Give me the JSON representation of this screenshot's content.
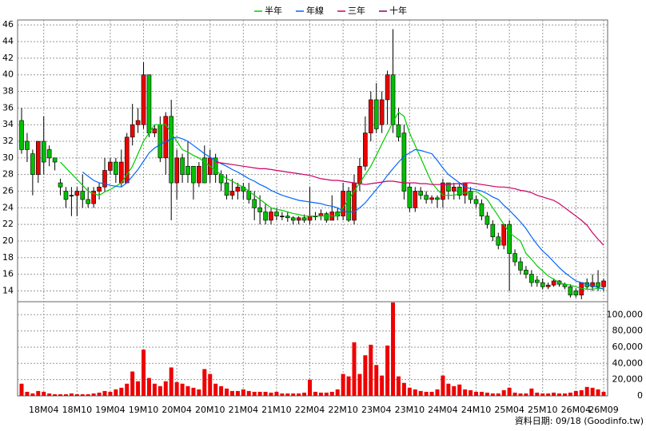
{
  "chart_data": {
    "type": "candlestick",
    "categories": [
      null,
      null,
      null,
      null,
      "18M04",
      null,
      null,
      null,
      null,
      null,
      "18M10",
      null,
      null,
      null,
      null,
      null,
      "19M04",
      null,
      null,
      null,
      null,
      null,
      "19M10",
      null,
      null,
      null,
      null,
      null,
      "20M04",
      null,
      null,
      null,
      null,
      null,
      "20M10",
      null,
      null,
      null,
      null,
      null,
      "21M04",
      null,
      null,
      null,
      null,
      null,
      "21M10",
      null,
      null,
      null,
      null,
      null,
      "22M04",
      null,
      null,
      null,
      null,
      null,
      "22M10",
      null,
      null,
      null,
      null,
      null,
      "23M04",
      null,
      null,
      null,
      null,
      null,
      "23M10",
      null,
      null,
      null,
      null,
      null,
      "24M04",
      null,
      null,
      null,
      null,
      null,
      "24M10",
      null,
      null,
      null,
      null,
      null,
      "25M04",
      null,
      null,
      null,
      null,
      null,
      "25M10",
      null,
      null,
      null,
      null,
      null,
      "26M04",
      null,
      null,
      null,
      null,
      "26M09"
    ],
    "open": [
      34.5,
      32,
      30.5,
      28,
      32,
      31,
      30,
      27,
      26,
      25.5,
      25.5,
      26,
      25,
      24.5,
      26,
      26.5,
      28.5,
      29.5,
      27,
      27,
      32.5,
      34,
      34,
      40,
      33,
      34,
      30,
      35,
      27,
      30,
      29,
      29,
      27,
      30,
      28,
      30,
      28,
      27,
      25.5,
      26,
      26.5,
      26,
      25,
      24,
      23.5,
      22.5,
      23.5,
      23,
      23,
      22.8,
      22.5,
      22.8,
      22.5,
      23,
      23,
      23.3,
      22.5,
      23.5,
      23,
      26,
      22.5,
      27,
      29,
      33,
      37,
      34,
      37,
      40,
      34,
      33,
      26.5,
      24,
      26,
      25.5,
      25,
      25.2,
      25,
      27,
      26,
      26.5,
      25.5,
      26,
      25,
      24.5,
      23,
      22,
      20.5,
      19.5,
      22,
      18.5,
      17.5,
      16.5,
      16,
      15.3,
      15,
      14.5,
      14.7,
      15.2,
      14.8,
      14.5,
      14,
      13.5,
      15,
      14.5,
      15,
      14.5
    ],
    "high": [
      36,
      33,
      31,
      32,
      35,
      31.5,
      30,
      27.5,
      26.5,
      26.5,
      26.5,
      28,
      26.5,
      26.5,
      27,
      30,
      30,
      30,
      31,
      33,
      36.5,
      36,
      41.5,
      40,
      34,
      35,
      35.5,
      37,
      31,
      30.5,
      32,
      29,
      29.5,
      31.5,
      31,
      30.5,
      28.5,
      28,
      27.5,
      27,
      27,
      27,
      26,
      25.5,
      24.5,
      24,
      24,
      23.5,
      23.5,
      23,
      23,
      23.2,
      26.5,
      23.5,
      23.8,
      23.5,
      25.5,
      24,
      27,
      26.5,
      28,
      30,
      35,
      38,
      39,
      38,
      40.5,
      45.5,
      36,
      34,
      27,
      26.5,
      26.5,
      26,
      25.5,
      25.5,
      27.5,
      27,
      27,
      27,
      27,
      26.5,
      25.5,
      25,
      23.5,
      22.5,
      21,
      22,
      22.5,
      19,
      18,
      17,
      16.5,
      15.8,
      15.5,
      15,
      15.5,
      15.3,
      15,
      14.8,
      14.3,
      15,
      15.5,
      16,
      16.5,
      15.5
    ],
    "low": [
      30.5,
      29.5,
      25.5,
      27,
      28,
      29,
      28.5,
      25.5,
      24,
      23,
      23,
      24,
      24,
      24,
      25,
      26,
      28,
      27,
      26.5,
      27,
      31.5,
      33,
      33.5,
      32.5,
      32.5,
      29.5,
      28,
      22.5,
      25,
      27,
      27,
      25,
      26.5,
      27,
      27,
      27,
      26,
      25,
      25,
      25,
      25,
      24.5,
      22.5,
      22,
      22,
      22,
      22.5,
      22.5,
      22.3,
      22,
      22,
      22.2,
      22,
      22.5,
      22.5,
      22.2,
      22.5,
      22.5,
      22.5,
      22.3,
      22,
      26,
      28.5,
      32,
      33,
      33,
      34,
      33,
      32,
      25,
      23.5,
      23.5,
      25,
      24.5,
      24.5,
      24,
      24,
      25,
      25,
      25,
      24.5,
      24.5,
      24,
      22.5,
      21.5,
      20,
      19,
      19,
      14,
      17,
      16,
      15.5,
      14.5,
      14.5,
      14.2,
      14.2,
      14.5,
      14.5,
      14.2,
      13.2,
      13.2,
      13,
      14.2,
      14,
      14,
      14
    ],
    "close": [
      31,
      31,
      28,
      32,
      29.5,
      30,
      29.5,
      26.5,
      25,
      25.5,
      26,
      25,
      24.5,
      26,
      26.5,
      28.5,
      29.5,
      28,
      29.5,
      32.5,
      34,
      34.5,
      40,
      33,
      33.5,
      30,
      35,
      27,
      30,
      28,
      28,
      27,
      29,
      27,
      30,
      28,
      27,
      25.5,
      26,
      26.5,
      26,
      25,
      24,
      23.5,
      22.5,
      23.5,
      23,
      23,
      22.8,
      22.5,
      22.8,
      22.5,
      23,
      23,
      23.3,
      22.5,
      23.5,
      23,
      26,
      22.5,
      27,
      29,
      33,
      37,
      33.5,
      37,
      40,
      34,
      32.5,
      26,
      24,
      26,
      25.5,
      25,
      25.2,
      25,
      27,
      26,
      26.5,
      25.5,
      27,
      25,
      24.5,
      23,
      22,
      20.5,
      19.5,
      22,
      18.5,
      17.5,
      16.5,
      16,
      15,
      15,
      14.5,
      14.7,
      15.2,
      14.8,
      14.5,
      13.5,
      13.5,
      15,
      14.5,
      15,
      14.5,
      15.2
    ],
    "volume": [
      15000,
      5000,
      3000,
      6000,
      5000,
      3000,
      2000,
      2000,
      2000,
      3000,
      2000,
      2000,
      2000,
      3000,
      4000,
      6000,
      5000,
      8000,
      10000,
      15000,
      30000,
      18000,
      57000,
      22000,
      15000,
      12000,
      18000,
      35000,
      17000,
      15000,
      12000,
      10000,
      8000,
      33000,
      27000,
      15000,
      12000,
      9000,
      6000,
      6000,
      8000,
      6000,
      5000,
      5000,
      5000,
      4000,
      5000,
      3000,
      3000,
      3000,
      3000,
      4000,
      20000,
      5000,
      4000,
      4000,
      5000,
      8000,
      27000,
      24000,
      66000,
      27000,
      50000,
      63000,
      38000,
      25000,
      62000,
      115000,
      24000,
      16000,
      10000,
      8000,
      6000,
      5000,
      5000,
      8000,
      25000,
      15000,
      12000,
      14000,
      8000,
      7000,
      5000,
      5000,
      4000,
      3000,
      3000,
      7000,
      10000,
      4000,
      3000,
      3000,
      9000,
      4000,
      3000,
      3000,
      4000,
      3000,
      3000,
      4000,
      6000,
      7000,
      11000,
      10000,
      8000,
      5000
    ],
    "up_color": "#ee0000",
    "down_color": "#00c000",
    "volume_color": "#ee0000",
    "series": [
      {
        "name": "半年",
        "color": "#00cc00",
        "values": [
          null,
          null,
          null,
          null,
          null,
          null,
          null,
          29.5,
          28.8,
          28.1,
          27.4,
          26.7,
          26,
          25.7,
          25.5,
          25.9,
          26.2,
          26.6,
          27,
          28,
          29,
          30.5,
          32,
          33,
          34,
          34,
          34,
          33,
          32,
          31,
          30.7,
          30.3,
          30,
          29.5,
          29,
          28.5,
          28,
          27.5,
          27.2,
          26.8,
          26.5,
          26,
          25.5,
          25,
          24.5,
          24,
          23.8,
          23.7,
          23.5,
          23.3,
          23.2,
          23,
          23,
          23,
          23,
          23,
          23,
          23,
          24,
          25,
          26,
          27,
          28,
          29,
          30.3,
          31.7,
          33,
          34.3,
          35.5,
          35,
          33,
          31.5,
          30,
          28.5,
          27,
          26.2,
          25.5,
          25.5,
          25.5,
          25.7,
          25.8,
          25.9,
          26,
          25.5,
          25,
          24,
          23,
          22,
          21,
          20.5,
          20,
          18.5,
          17.8,
          17,
          16.4,
          15.8,
          15.4,
          15,
          14.8,
          14.7,
          14.5,
          14.3,
          14.2,
          14.2,
          14.3,
          14.3
        ]
      },
      {
        "name": "年線",
        "color": "#0066ff",
        "values": [
          null,
          null,
          null,
          null,
          null,
          null,
          null,
          null,
          null,
          null,
          null,
          28.3,
          27.8,
          27.3,
          27,
          26.9,
          26.7,
          26.6,
          26.5,
          27,
          27.8,
          28.6,
          29.6,
          30.6,
          31.2,
          31.6,
          32,
          32.3,
          32.5,
          32.3,
          32,
          31.5,
          31,
          30.5,
          30.1,
          29.7,
          29.3,
          29,
          28.6,
          28.3,
          27.9,
          27.5,
          27.2,
          26.8,
          26.5,
          26.1,
          25.8,
          25.5,
          25.3,
          25.1,
          24.9,
          24.8,
          24.7,
          24.6,
          24.5,
          24.3,
          24.2,
          24,
          23.6,
          23.5,
          23.5,
          24,
          24.6,
          25.4,
          26.2,
          27,
          27.9,
          28.7,
          29.5,
          30.2,
          30.6,
          31,
          30.9,
          30.7,
          30.5,
          29.7,
          28.8,
          28,
          27.5,
          27,
          26.5,
          26.3,
          26.2,
          26,
          25.7,
          25.3,
          25,
          24.3,
          23.7,
          23,
          22.3,
          21.5,
          20.5,
          19.6,
          18.8,
          18.2,
          17.5,
          16.8,
          16.2,
          15.7,
          15.2,
          15,
          14.8,
          14.6,
          14.4,
          14.2
        ]
      },
      {
        "name": "三年",
        "color": "#cc0066",
        "values": [
          null,
          null,
          null,
          null,
          null,
          null,
          null,
          null,
          null,
          null,
          null,
          null,
          null,
          null,
          null,
          null,
          null,
          null,
          null,
          null,
          null,
          null,
          null,
          null,
          null,
          null,
          null,
          null,
          null,
          null,
          null,
          null,
          null,
          null,
          null,
          29.5,
          29.4,
          29.3,
          29.2,
          29.1,
          29,
          28.9,
          28.8,
          28.7,
          28.7,
          28.6,
          28.5,
          28.4,
          28.3,
          28.2,
          28.1,
          28,
          27.9,
          27.7,
          27.5,
          27.4,
          27.3,
          27.3,
          27.2,
          27.1,
          27,
          26.9,
          26.8,
          26.9,
          27,
          27.1,
          27.2,
          27.2,
          27.1,
          27,
          27,
          27,
          26.9,
          26.9,
          26.8,
          26.8,
          26.8,
          26.8,
          26.9,
          26.9,
          27,
          27,
          26.9,
          26.8,
          26.7,
          26.6,
          26.5,
          26.5,
          26.4,
          26.3,
          26.1,
          26,
          25.8,
          25.5,
          25.3,
          25.1,
          24.9,
          24.5,
          24,
          23.5,
          23,
          22.5,
          21.9,
          21,
          20.2,
          19.5
        ]
      },
      {
        "name": "十年",
        "color": "#800080",
        "values": [
          null,
          null,
          null,
          null,
          null,
          null,
          null,
          null,
          null,
          null,
          null,
          null,
          null,
          null,
          null,
          null,
          null,
          null,
          null,
          null,
          null,
          null,
          null,
          null,
          null,
          null,
          null,
          null,
          null,
          null,
          null,
          null,
          null,
          null,
          null,
          null,
          null,
          null,
          null,
          null,
          null,
          null,
          null,
          null,
          null,
          null,
          null,
          null,
          null,
          null,
          null,
          null,
          null,
          null,
          null,
          null,
          null,
          null,
          null,
          null,
          null,
          null,
          null,
          null,
          null,
          null,
          null,
          null,
          null,
          null,
          null,
          null,
          null,
          null,
          null,
          null,
          null,
          null,
          null,
          null,
          null,
          null,
          null,
          null,
          null,
          null,
          null,
          null,
          null,
          null,
          null,
          null,
          null,
          null,
          null,
          null,
          null,
          null,
          null,
          null,
          null,
          null,
          null,
          null,
          null,
          null
        ]
      }
    ],
    "ylim": [
      12.7,
      46.6
    ],
    "yticks": [
      14,
      16,
      18,
      20,
      22,
      24,
      26,
      28,
      30,
      32,
      34,
      36,
      38,
      40,
      42,
      44,
      46
    ],
    "volume_ylim": [
      0,
      116000
    ],
    "volume_yticks": [
      0,
      {
        "value": 20000,
        "label": "20,000"
      },
      {
        "value": 40000,
        "label": "40,000"
      },
      {
        "value": 60000,
        "label": "60,000"
      },
      {
        "value": 80000,
        "label": "80,000"
      },
      {
        "value": 100000,
        "label": "100,000"
      }
    ],
    "grid": true,
    "footer": "資料日期: 09/18 (Goodinfo.tw)"
  }
}
